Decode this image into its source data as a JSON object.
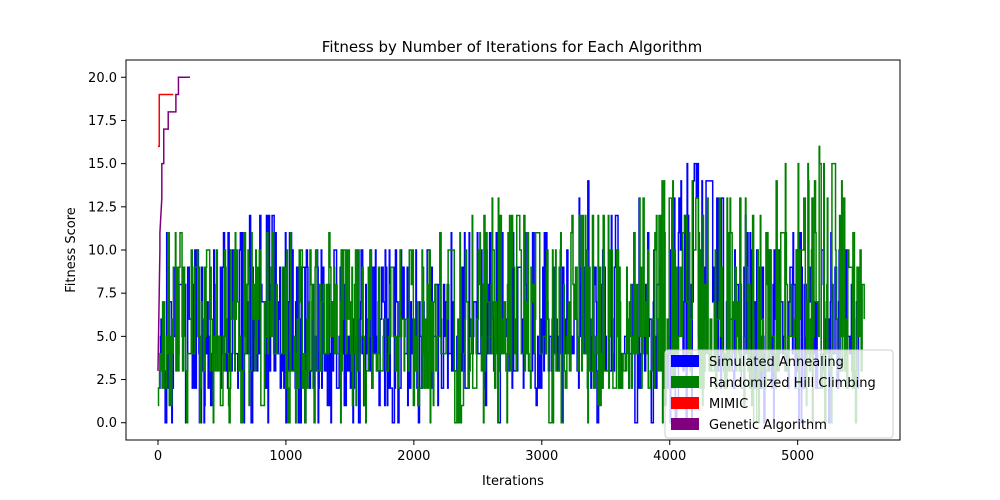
{
  "chart_data": {
    "type": "line",
    "title": "Fitness by Number of Iterations for Each Algorithm",
    "xlabel": "Iterations",
    "ylabel": "Fitness Score",
    "xlim": [
      -250,
      5800
    ],
    "ylim": [
      -1,
      21
    ],
    "x_ticks": [
      0,
      1000,
      2000,
      3000,
      4000,
      5000
    ],
    "x_tick_labels": [
      "0",
      "1000",
      "2000",
      "3000",
      "4000",
      "5000"
    ],
    "y_ticks": [
      0,
      2.5,
      5,
      7.5,
      10,
      12.5,
      15,
      17.5,
      20
    ],
    "y_tick_labels": [
      "0.0",
      "2.5",
      "5.0",
      "7.5",
      "10.0",
      "12.5",
      "15.0",
      "17.5",
      "20.0"
    ],
    "grid": false,
    "legend": "lower-right",
    "series": [
      {
        "name": "Simulated Annealing",
        "color": "#0000ff",
        "x_max": 5480,
        "anchors_x": [
          0,
          60,
          400,
          800,
          1200,
          1600,
          2000,
          2400,
          2800,
          3000,
          3200,
          3300,
          3340,
          3600,
          3800,
          4000,
          4140,
          4400,
          4800,
          5200,
          5480
        ],
        "anchors_y": [
          2,
          11,
          10,
          12,
          10,
          10,
          10,
          11,
          11,
          11,
          14,
          13,
          14,
          12,
          13,
          12,
          16,
          13,
          10,
          12,
          9
        ]
      },
      {
        "name": "Randomized Hill Climbing",
        "color": "#008000",
        "x_max": 5520,
        "anchors_x": [
          0,
          60,
          400,
          800,
          1200,
          1600,
          2000,
          2400,
          2600,
          3000,
          3400,
          3800,
          4000,
          4400,
          4800,
          5100,
          5300,
          5520
        ],
        "anchors_y": [
          1,
          11,
          10,
          11,
          11,
          10,
          10,
          11,
          13,
          11,
          12,
          13,
          14,
          13,
          14,
          16,
          15,
          9
        ]
      },
      {
        "name": "MIMIC",
        "color": "#ff0000",
        "x": [
          0,
          0,
          10,
          10,
          120
        ],
        "y": [
          16,
          16,
          16,
          19,
          19
        ]
      },
      {
        "name": "Genetic Algorithm",
        "color": "#800080",
        "x": [
          0,
          15,
          15,
          30,
          30,
          45,
          45,
          60,
          60,
          80,
          80,
          110,
          110,
          140,
          140,
          160,
          160,
          250
        ],
        "y": [
          3,
          10,
          11,
          13,
          15,
          15,
          17,
          17,
          17,
          17,
          18,
          18,
          18,
          18,
          19,
          19,
          20,
          20
        ]
      }
    ]
  }
}
